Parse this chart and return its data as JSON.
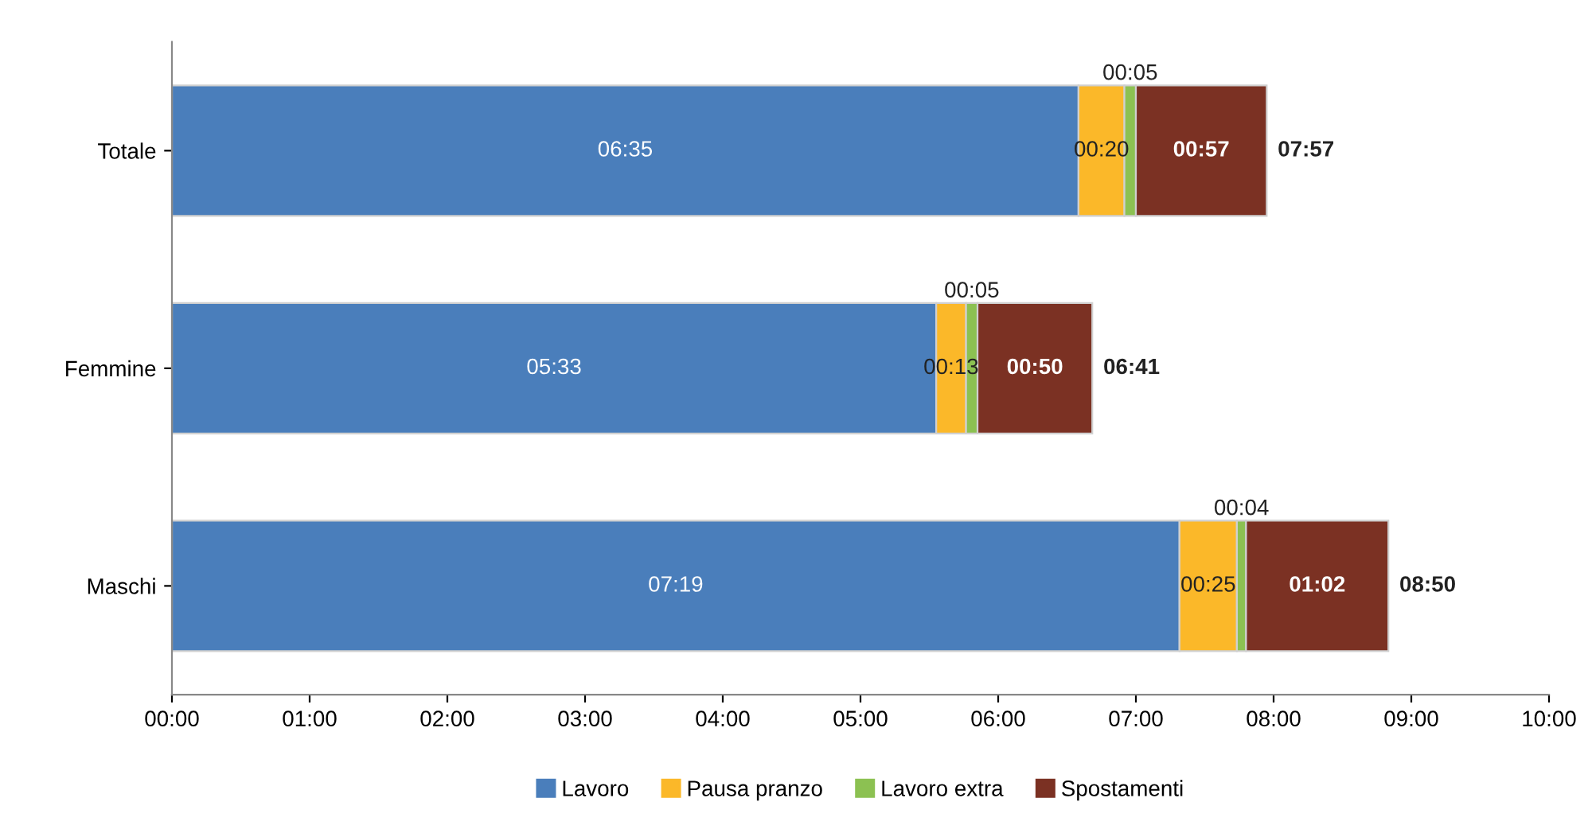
{
  "chart_data": {
    "type": "bar",
    "orientation": "horizontal",
    "stacked": true,
    "categories": [
      "Totale",
      "Femmine",
      "Maschi"
    ],
    "series": [
      {
        "name": "Lavoro",
        "color": "#4a7ebb",
        "values": [
          6.5833,
          5.55,
          7.3167
        ],
        "value_labels": [
          "06:35",
          "05:33",
          "07:19"
        ]
      },
      {
        "name": "Pausa pranzo",
        "color": "#fbb829",
        "values": [
          0.3333,
          0.2167,
          0.4167
        ],
        "value_labels": [
          "00:20",
          "00:13",
          "00:25"
        ]
      },
      {
        "name": "Lavoro extra",
        "color": "#8cc152",
        "values": [
          0.0833,
          0.0833,
          0.0667
        ],
        "value_labels": [
          "00:05",
          "00:05",
          "00:04"
        ]
      },
      {
        "name": "Spostamenti",
        "color": "#7b3123",
        "values": [
          0.95,
          0.8333,
          1.0333
        ],
        "value_labels": [
          "00:57",
          "00:50",
          "01:02"
        ]
      }
    ],
    "totals": [
      "07:57",
      "06:41",
      "08:50"
    ],
    "xlim": [
      0,
      10
    ],
    "xticks": [
      {
        "value": 0,
        "label": "00:00"
      },
      {
        "value": 1,
        "label": "01:00"
      },
      {
        "value": 2,
        "label": "02:00"
      },
      {
        "value": 3,
        "label": "03:00"
      },
      {
        "value": 4,
        "label": "04:00"
      },
      {
        "value": 5,
        "label": "05:00"
      },
      {
        "value": 6,
        "label": "06:00"
      },
      {
        "value": 7,
        "label": "07:00"
      },
      {
        "value": 8,
        "label": "08:00"
      },
      {
        "value": 9,
        "label": "09:00"
      },
      {
        "value": 10,
        "label": "10:00"
      }
    ],
    "grid": false,
    "legend": "bottom"
  }
}
